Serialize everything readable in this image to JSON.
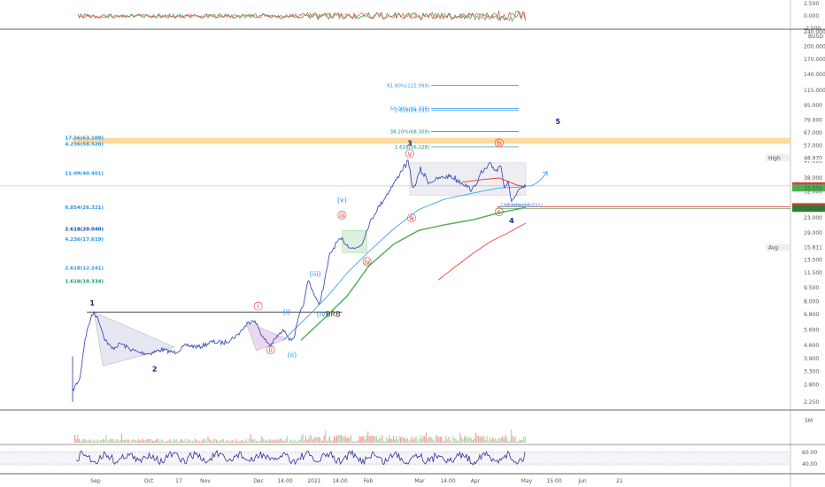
{
  "chart_data": {
    "type": "line",
    "symbol": "BUSD",
    "y_scale": "log",
    "main_y_ticks": [
      2.25,
      2.8,
      3.3,
      3.9,
      4.6,
      5.6,
      6.8,
      8.0,
      9.5,
      11.5,
      13.5,
      16.0,
      19.0,
      23.0,
      32.0,
      38.0,
      47.0,
      57.0,
      67.0,
      79.0,
      95.0,
      115.0,
      140.0,
      170.0,
      200.0,
      240.0
    ],
    "main_y_tick_labels": [
      "2.250",
      "2.800",
      "3.300",
      "3.900",
      "4.600",
      "5.600",
      "6.800",
      "8.000",
      "9.500",
      "11.500",
      "13.500",
      "16.000",
      "19.000",
      "23.000",
      "32.000",
      "38.000",
      "47.000",
      "57.000",
      "67.000",
      "79.000",
      "95.000",
      "115.000",
      "140.000",
      "170.000",
      "200.000",
      "240.000"
    ],
    "top_panel_ticks": [
      "2.500",
      "0.000",
      "-2.500"
    ],
    "volume_tick": "5M",
    "rsi_ticks": [
      "60.00",
      "40.00"
    ],
    "x_tick_labels": [
      "Sep",
      "Oct",
      "17",
      "Nov",
      "Dec",
      "14:00",
      "2021",
      "14:00",
      "Feb",
      "Mar",
      "14:00",
      "Apr",
      "May",
      "15:00",
      "Jun",
      "21"
    ],
    "price_labels": {
      "high": {
        "text": "High",
        "value": "48.970",
        "y": 48.97
      },
      "last": {
        "value": "34.397",
        "y": 34.4
      },
      "current": {
        "value": "33.504",
        "y": 33.5
      },
      "red": {
        "value": "26.461",
        "y": 26.46
      },
      "green": {
        "value": "26.159",
        "y": 25.9
      },
      "avg": {
        "text": "Avg",
        "value": "15.811",
        "y": 15.81
      }
    },
    "fib_levels": [
      {
        "label": "61.80%(122.099)",
        "y": 122.1,
        "color": "#2196f3",
        "side": "right"
      },
      {
        "label": "50.00%(91.326)",
        "y": 91.3,
        "color": "#2196f3",
        "side": "right"
      },
      {
        "label": "2.618(89.133)",
        "y": 89.1,
        "color": "#2196f3",
        "side": "right"
      },
      {
        "label": "38.20%(68.309)",
        "y": 68.3,
        "color": "#089981",
        "side": "right"
      },
      {
        "label": "1.618(56.228)",
        "y": 56.2,
        "color": "#089981",
        "side": "right"
      },
      {
        "label": "17.56(63.109)",
        "y": 63.1,
        "color": "#2196f3",
        "side": "left"
      },
      {
        "label": "4.236(58.520)",
        "y": 58.5,
        "color": "#2196f3",
        "side": "left"
      },
      {
        "label": "11.09(40.401)",
        "y": 40.4,
        "color": "#2196f3",
        "side": "left"
      },
      {
        "label": "6.854(26.321)",
        "y": 26.3,
        "color": "#2196f3",
        "side": "left"
      },
      {
        "label": "2.618(20.040)",
        "y": 20.04,
        "color": "#0d47a1",
        "side": "left"
      },
      {
        "label": "4.236(17.619)",
        "y": 17.6,
        "color": "#2196f3",
        "side": "left"
      },
      {
        "label": "2.618(12.241)",
        "y": 12.24,
        "color": "#2196f3",
        "side": "left"
      },
      {
        "label": "1.618(10.334)",
        "y": 10.33,
        "color": "#089981",
        "side": "left"
      },
      {
        "label": "127.20%(27.031)",
        "y": 27.03,
        "color": "#2196f3",
        "side": "right"
      }
    ],
    "wave_labels": [
      {
        "text": "1",
        "date": "2020-08-30",
        "y": 7.6,
        "color": "#1a237e",
        "circled": false,
        "bold": true
      },
      {
        "text": "2",
        "date": "2020-10-04",
        "y": 3.3,
        "color": "#1a237e",
        "circled": false,
        "bold": true
      },
      {
        "text": "3",
        "date": "2021-02-24",
        "y": 57.0,
        "color": "#1a237e",
        "circled": false,
        "bold": true
      },
      {
        "text": "4",
        "date": "2021-04-22",
        "y": 21.5,
        "color": "#1a237e",
        "circled": false,
        "bold": true
      },
      {
        "text": "5",
        "date": "2021-05-18",
        "y": 75.0,
        "color": "#1a237e",
        "circled": false,
        "bold": true
      },
      {
        "text": "i",
        "date": "2020-12-01",
        "y": 7.3,
        "color": "#e53935",
        "circled": true,
        "bold": false
      },
      {
        "text": "ii",
        "date": "2020-12-08",
        "y": 4.2,
        "color": "#e53935",
        "circled": true,
        "bold": false
      },
      {
        "text": "iii",
        "date": "2021-01-17",
        "y": 23.0,
        "color": "#e53935",
        "circled": true,
        "bold": false
      },
      {
        "text": "iv",
        "date": "2021-01-31",
        "y": 12.8,
        "color": "#e53935",
        "circled": true,
        "bold": false
      },
      {
        "text": "v",
        "date": "2021-02-24",
        "y": 50.0,
        "color": "#e53935",
        "circled": true,
        "bold": false
      },
      {
        "text": "a",
        "date": "2021-02-25",
        "y": 22.2,
        "color": "#e53935",
        "circled": true,
        "bold": false
      },
      {
        "text": "b",
        "date": "2021-04-15",
        "y": 57.2,
        "color": "#e53935",
        "circled": true,
        "bold": false
      },
      {
        "text": "c",
        "date": "2021-04-15",
        "y": 24.0,
        "color": "#e53935",
        "circled": true,
        "bold": false
      },
      {
        "text": "(i)",
        "date": "2020-12-17",
        "y": 6.8,
        "color": "#2196f3",
        "circled": false,
        "bold": false
      },
      {
        "text": "(ii)",
        "date": "2020-12-20",
        "y": 3.95,
        "color": "#2196f3",
        "circled": false,
        "bold": false
      },
      {
        "text": "(iii)",
        "date": "2021-01-02",
        "y": 11.0,
        "color": "#2196f3",
        "circled": false,
        "bold": false
      },
      {
        "text": "(iv)",
        "date": "2021-01-06",
        "y": 6.6,
        "color": "#2196f3",
        "circled": false,
        "bold": false
      },
      {
        "text": "(v)",
        "date": "2021-01-17",
        "y": 28.0,
        "color": "#2196f3",
        "circled": false,
        "bold": false
      },
      {
        "text": "BRB",
        "date": "2021-01-12",
        "y": 6.6,
        "color": "#333333",
        "circled": false,
        "bold": false
      }
    ],
    "series": [
      {
        "name": "",
        "color": "#3f51b5",
        "x": [
          "2020-08-19",
          "2020-08-21",
          "2020-08-23",
          "2020-08-26",
          "2020-08-29",
          "2020-08-31",
          "2020-09-03",
          "2020-09-06",
          "2020-09-10",
          "2020-09-15",
          "2020-09-20",
          "2020-09-25",
          "2020-10-01",
          "2020-10-08",
          "2020-10-15",
          "2020-10-22",
          "2020-10-29",
          "2020-11-05",
          "2020-11-12",
          "2020-11-19",
          "2020-11-24",
          "2020-11-28",
          "2020-12-01",
          "2020-12-04",
          "2020-12-08",
          "2020-12-12",
          "2020-12-16",
          "2020-12-19",
          "2020-12-21",
          "2020-12-24",
          "2020-12-27",
          "2020-12-29",
          "2021-01-01",
          "2021-01-04",
          "2021-01-07",
          "2021-01-10",
          "2021-01-14",
          "2021-01-17",
          "2021-01-20",
          "2021-01-24",
          "2021-01-28",
          "2021-02-01",
          "2021-02-05",
          "2021-02-09",
          "2021-02-13",
          "2021-02-17",
          "2021-02-20",
          "2021-02-23",
          "2021-02-26",
          "2021-03-02",
          "2021-03-07",
          "2021-03-13",
          "2021-03-19",
          "2021-03-25",
          "2021-03-31",
          "2021-04-05",
          "2021-04-10",
          "2021-04-14",
          "2021-04-16",
          "2021-04-18",
          "2021-04-20",
          "2021-04-22",
          "2021-04-24",
          "2021-04-27",
          "2021-04-30"
        ],
        "values": [
          2.6,
          2.8,
          3.0,
          5.0,
          6.4,
          7.0,
          6.2,
          5.0,
          4.4,
          4.7,
          4.4,
          4.2,
          4.15,
          4.35,
          4.2,
          4.6,
          4.5,
          4.8,
          4.75,
          5.2,
          5.9,
          6.4,
          5.8,
          5.0,
          4.6,
          5.2,
          5.6,
          4.9,
          5.1,
          6.6,
          8.1,
          10.5,
          9.0,
          7.6,
          10.0,
          14.3,
          16.8,
          17.5,
          16.3,
          15.5,
          16.5,
          21.0,
          25.0,
          28.5,
          33.0,
          38.0,
          43.0,
          46.0,
          33.0,
          42.0,
          36.0,
          38.0,
          39.0,
          36.0,
          32.5,
          40.0,
          44.5,
          42.0,
          46.0,
          34.0,
          36.0,
          28.5,
          30.0,
          33.0,
          34.4
        ]
      },
      {
        "name": "",
        "color": "#42a5f5",
        "x": [
          "2020-12-15",
          "2020-12-30",
          "2021-01-10",
          "2021-01-20",
          "2021-02-01",
          "2021-02-15",
          "2021-03-01",
          "2021-03-15",
          "2021-04-01",
          "2021-04-15",
          "2021-04-30"
        ],
        "values": [
          4.9,
          6.8,
          8.8,
          11.5,
          15.0,
          20.0,
          25.5,
          29.0,
          31.5,
          33.5,
          34.0
        ]
      },
      {
        "name": "",
        "color": "#4caf50",
        "x": [
          "2020-12-25",
          "2021-01-08",
          "2021-01-20",
          "2021-02-01",
          "2021-02-15",
          "2021-03-01",
          "2021-03-15",
          "2021-04-01",
          "2021-04-15",
          "2021-04-30"
        ],
        "values": [
          4.9,
          6.6,
          8.6,
          12.5,
          16.5,
          19.6,
          21.0,
          22.5,
          24.5,
          26.2
        ]
      },
      {
        "name": "",
        "color": "#f44336",
        "x": [
          "2021-03-12",
          "2021-03-22",
          "2021-04-01",
          "2021-04-10",
          "2021-04-20",
          "2021-04-30"
        ],
        "values": [
          10.5,
          12.5,
          14.8,
          17.0,
          19.0,
          21.5
        ]
      },
      {
        "name": "",
        "color": "#e53935",
        "x": [
          "2021-03-25",
          "2021-04-05",
          "2021-04-15",
          "2021-04-25",
          "2021-04-30"
        ],
        "values": [
          36.0,
          37.2,
          38.0,
          34.8,
          34.0
        ]
      }
    ]
  }
}
